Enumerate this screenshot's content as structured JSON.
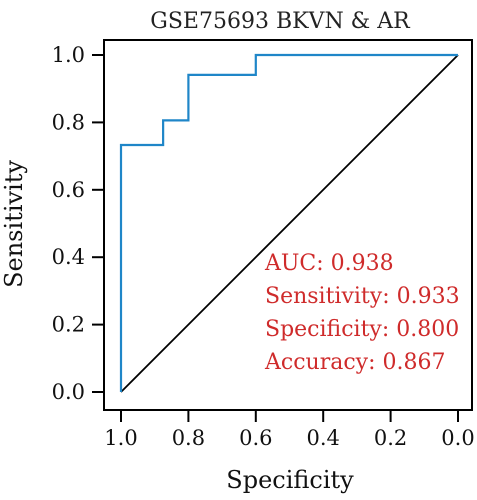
{
  "colors": {
    "roc_line": "#1f86c8",
    "diagonal": "#000000",
    "stats_text": "#cf2b2b",
    "axis": "#000000"
  },
  "chart_data": {
    "type": "line",
    "title": "GSE75693 BKVN & AR",
    "xlabel": "Specificity",
    "ylabel": "Sensitivity",
    "xlim": [
      1.0,
      0.0
    ],
    "ylim": [
      0.0,
      1.0
    ],
    "x_reversed": true,
    "grid": false,
    "x_ticks": [
      "1.0",
      "0.8",
      "0.6",
      "0.4",
      "0.2",
      "0.0"
    ],
    "y_ticks": [
      "0.0",
      "0.2",
      "0.4",
      "0.6",
      "0.8",
      "1.0"
    ],
    "x_tick_values": [
      1.0,
      0.8,
      0.6,
      0.4,
      0.2,
      0.0
    ],
    "y_tick_values": [
      0.0,
      0.2,
      0.4,
      0.6,
      0.8,
      1.0
    ],
    "roc_curve": {
      "specificity": [
        1.0,
        1.0,
        0.875,
        0.875,
        0.8,
        0.8,
        0.6,
        0.6,
        0.0
      ],
      "sensitivity": [
        0.0,
        0.733,
        0.733,
        0.806,
        0.806,
        0.941,
        0.941,
        1.0,
        1.0
      ]
    },
    "reference_line": {
      "specificity": [
        1.0,
        0.0
      ],
      "sensitivity": [
        0.0,
        1.0
      ]
    },
    "annotations": [
      "AUC: 0.938",
      "Sensitivity: 0.933",
      "Specificity: 0.800",
      "Accuracy: 0.867"
    ]
  }
}
